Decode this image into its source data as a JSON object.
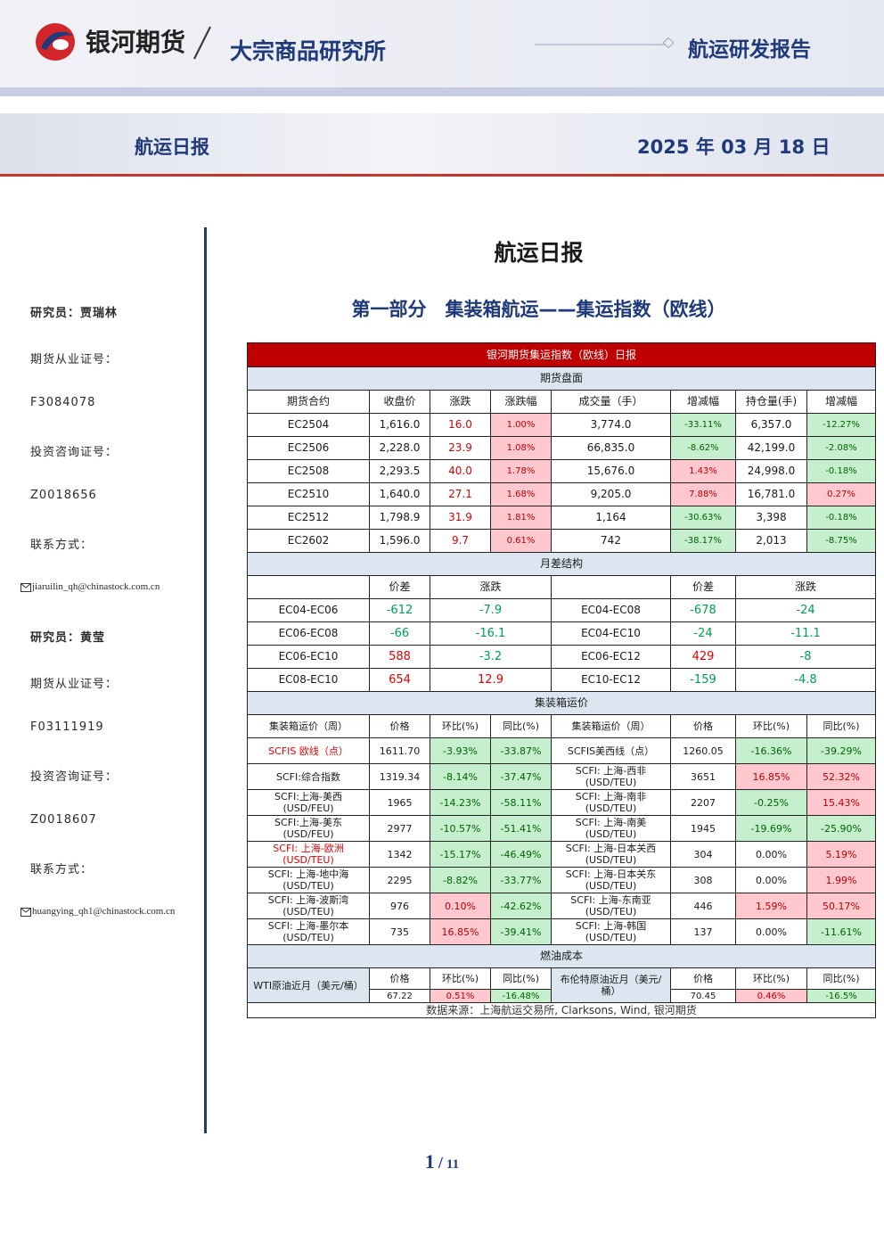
{
  "header": {
    "company": "银河期货",
    "institute": "大宗商品研究所",
    "report_type": "航运研发报告"
  },
  "banner": {
    "title": "航运日报",
    "date": "2025 年 03 月 18 日"
  },
  "sidebar": [
    "研究员：贾瑞林",
    "期货从业证号：",
    "F3084078",
    "投资咨询证号：",
    "Z0018656",
    "联系方式：",
    "jiaruilin_qh@chinastock.com.cn",
    "研究员：黄莹",
    "期货从业证号：",
    "F03111919",
    "投资咨询证号：",
    "Z0018607",
    "联系方式：",
    "huangying_qh1@chinastock.com.cn"
  ],
  "main_title": "航运日报",
  "section_title": "第一部分　集装箱航运——集运指数（欧线）",
  "table": {
    "title": "银河期货集运指数（欧线）日报",
    "sections": [
      {
        "label": "期货盘面",
        "header": [
          "期货合约",
          "收盘价",
          "涨跌",
          "涨跌幅",
          "成交量（手）",
          "增减幅",
          "持仓量(手)",
          "增减幅"
        ],
        "signed_text_cols": [
          2
        ],
        "signed_fill_cols": [
          3,
          5,
          7
        ],
        "rows": [
          [
            "EC2504",
            "1,616.0",
            "16.0",
            "1.00%",
            "3,774.0",
            "-33.11%",
            "6,357.0",
            "-12.27%"
          ],
          [
            "EC2506",
            "2,228.0",
            "23.9",
            "1.08%",
            "66,835.0",
            "-8.62%",
            "42,199.0",
            "-2.08%"
          ],
          [
            "EC2508",
            "2,293.5",
            "40.0",
            "1.78%",
            "15,676.0",
            "1.43%",
            "24,998.0",
            "-0.18%"
          ],
          [
            "EC2510",
            "1,640.0",
            "27.1",
            "1.68%",
            "9,205.0",
            "7.88%",
            "16,781.0",
            "0.27%"
          ],
          [
            "EC2512",
            "1,798.9",
            "31.9",
            "1.81%",
            "1,164",
            "-30.63%",
            "3,398",
            "-0.18%"
          ],
          [
            "EC2602",
            "1,596.0",
            "9.7",
            "0.61%",
            "742",
            "-38.17%",
            "2,013",
            "-8.75%"
          ]
        ]
      },
      {
        "label": "月差结构",
        "header": [
          null,
          "价差",
          "涨跌",
          null,
          "价差",
          "涨跌"
        ],
        "signed_text_cols": [
          1,
          2,
          4,
          5
        ],
        "signed_fill_cols": [],
        "rows": [
          [
            "EC04-EC06",
            "-612",
            "-7.9",
            "EC04-EC08",
            "-678",
            "-24"
          ],
          [
            "EC06-EC08",
            "-66",
            "-16.1",
            "EC04-EC10",
            "-24",
            "-11.1"
          ],
          [
            "EC06-EC10",
            "588",
            "-3.2",
            "EC06-EC12",
            "429",
            "-8"
          ],
          [
            "EC08-EC10",
            "654",
            "12.9",
            "EC10-EC12",
            "-159",
            "-4.8"
          ]
        ]
      },
      {
        "label": "集装箱运价",
        "header": [
          "集装箱运价（周）",
          "价格",
          "环比(%)",
          "同比(%)",
          "集装箱运价（周）",
          "价格",
          "环比(%)",
          "同比(%)"
        ],
        "signed_text_cols": [],
        "signed_fill_cols": [
          2,
          3,
          6,
          7
        ],
        "highlight_color": "#e00000",
        "rows": [
          {
            "cells": [
              "SCFIS 欧线（点）",
              "1611.70",
              "-3.93%",
              "-33.87%",
              "SCFIS美西线（点）",
              "1260.05",
              "-16.36%",
              "-39.29%"
            ],
            "highlight": [
              0
            ]
          },
          {
            "cells": [
              "SCFI:综合指数",
              "1319.34",
              "-8.14%",
              "-37.47%",
              "SCFI: 上海-西非\n(USD/TEU)",
              "3651",
              "16.85%",
              "52.32%"
            ],
            "highlight": []
          },
          {
            "cells": [
              "SCFI:上海-美西\n(USD/FEU)",
              "1965",
              "-14.23%",
              "-58.11%",
              "SCFI: 上海-南非\n(USD/TEU)",
              "2207",
              "-0.25%",
              "15.43%"
            ],
            "highlight": []
          },
          {
            "cells": [
              "SCFI:上海-美东\n(USD/FEU)",
              "2977",
              "-10.57%",
              "-51.41%",
              "SCFI: 上海-南美\n(USD/TEU)",
              "1945",
              "-19.69%",
              "-25.90%"
            ],
            "highlight": []
          },
          {
            "cells": [
              "SCFI: 上海-欧洲\n(USD/TEU)",
              "1342",
              "-15.17%",
              "-46.49%",
              "SCFI: 上海-日本关西\n(USD/TEU)",
              "304",
              "0.00%",
              "5.19%"
            ],
            "highlight": [
              0
            ]
          },
          {
            "cells": [
              "SCFI: 上海-地中海\n(USD/TEU)",
              "2295",
              "-8.82%",
              "-33.77%",
              "SCFI: 上海-日本关东\n(USD/TEU)",
              "308",
              "0.00%",
              "1.99%"
            ],
            "highlight": []
          },
          {
            "cells": [
              "SCFI: 上海-波斯湾\n(USD/TEU)",
              "976",
              "0.10%",
              "-42.62%",
              "SCFI: 上海-东南亚\n(USD/TEU)",
              "446",
              "1.59%",
              "50.17%"
            ],
            "highlight": []
          },
          {
            "cells": [
              "SCFI: 上海-墨尔本\n(USD/TEU)",
              "735",
              "16.85%",
              "-39.41%",
              "SCFI: 上海-韩国\n(USD/TEU)",
              "137",
              "0.00%",
              "-11.61%"
            ],
            "highlight": []
          }
        ]
      },
      {
        "label": "燃油成本",
        "signed_fill_cols": [
          1,
          2
        ],
        "items": [
          {
            "name": "WTI原油近月（美元/桶）",
            "header": [
              "价格",
              "环比(%)",
              "同比(%)"
            ],
            "values": [
              "67.22",
              "0.51%",
              "-16.48%"
            ]
          },
          {
            "name": "布伦特原油近月（美元/桶）",
            "header": [
              "价格",
              "环比(%)",
              "同比(%)"
            ],
            "values": [
              "70.45",
              "0.46%",
              "-16.5%"
            ]
          }
        ]
      }
    ],
    "source": "数据来源：上海航运交易所, Clarksons, Wind, 银河期货"
  },
  "page": {
    "current": "1",
    "separator": "/",
    "total": "11"
  }
}
